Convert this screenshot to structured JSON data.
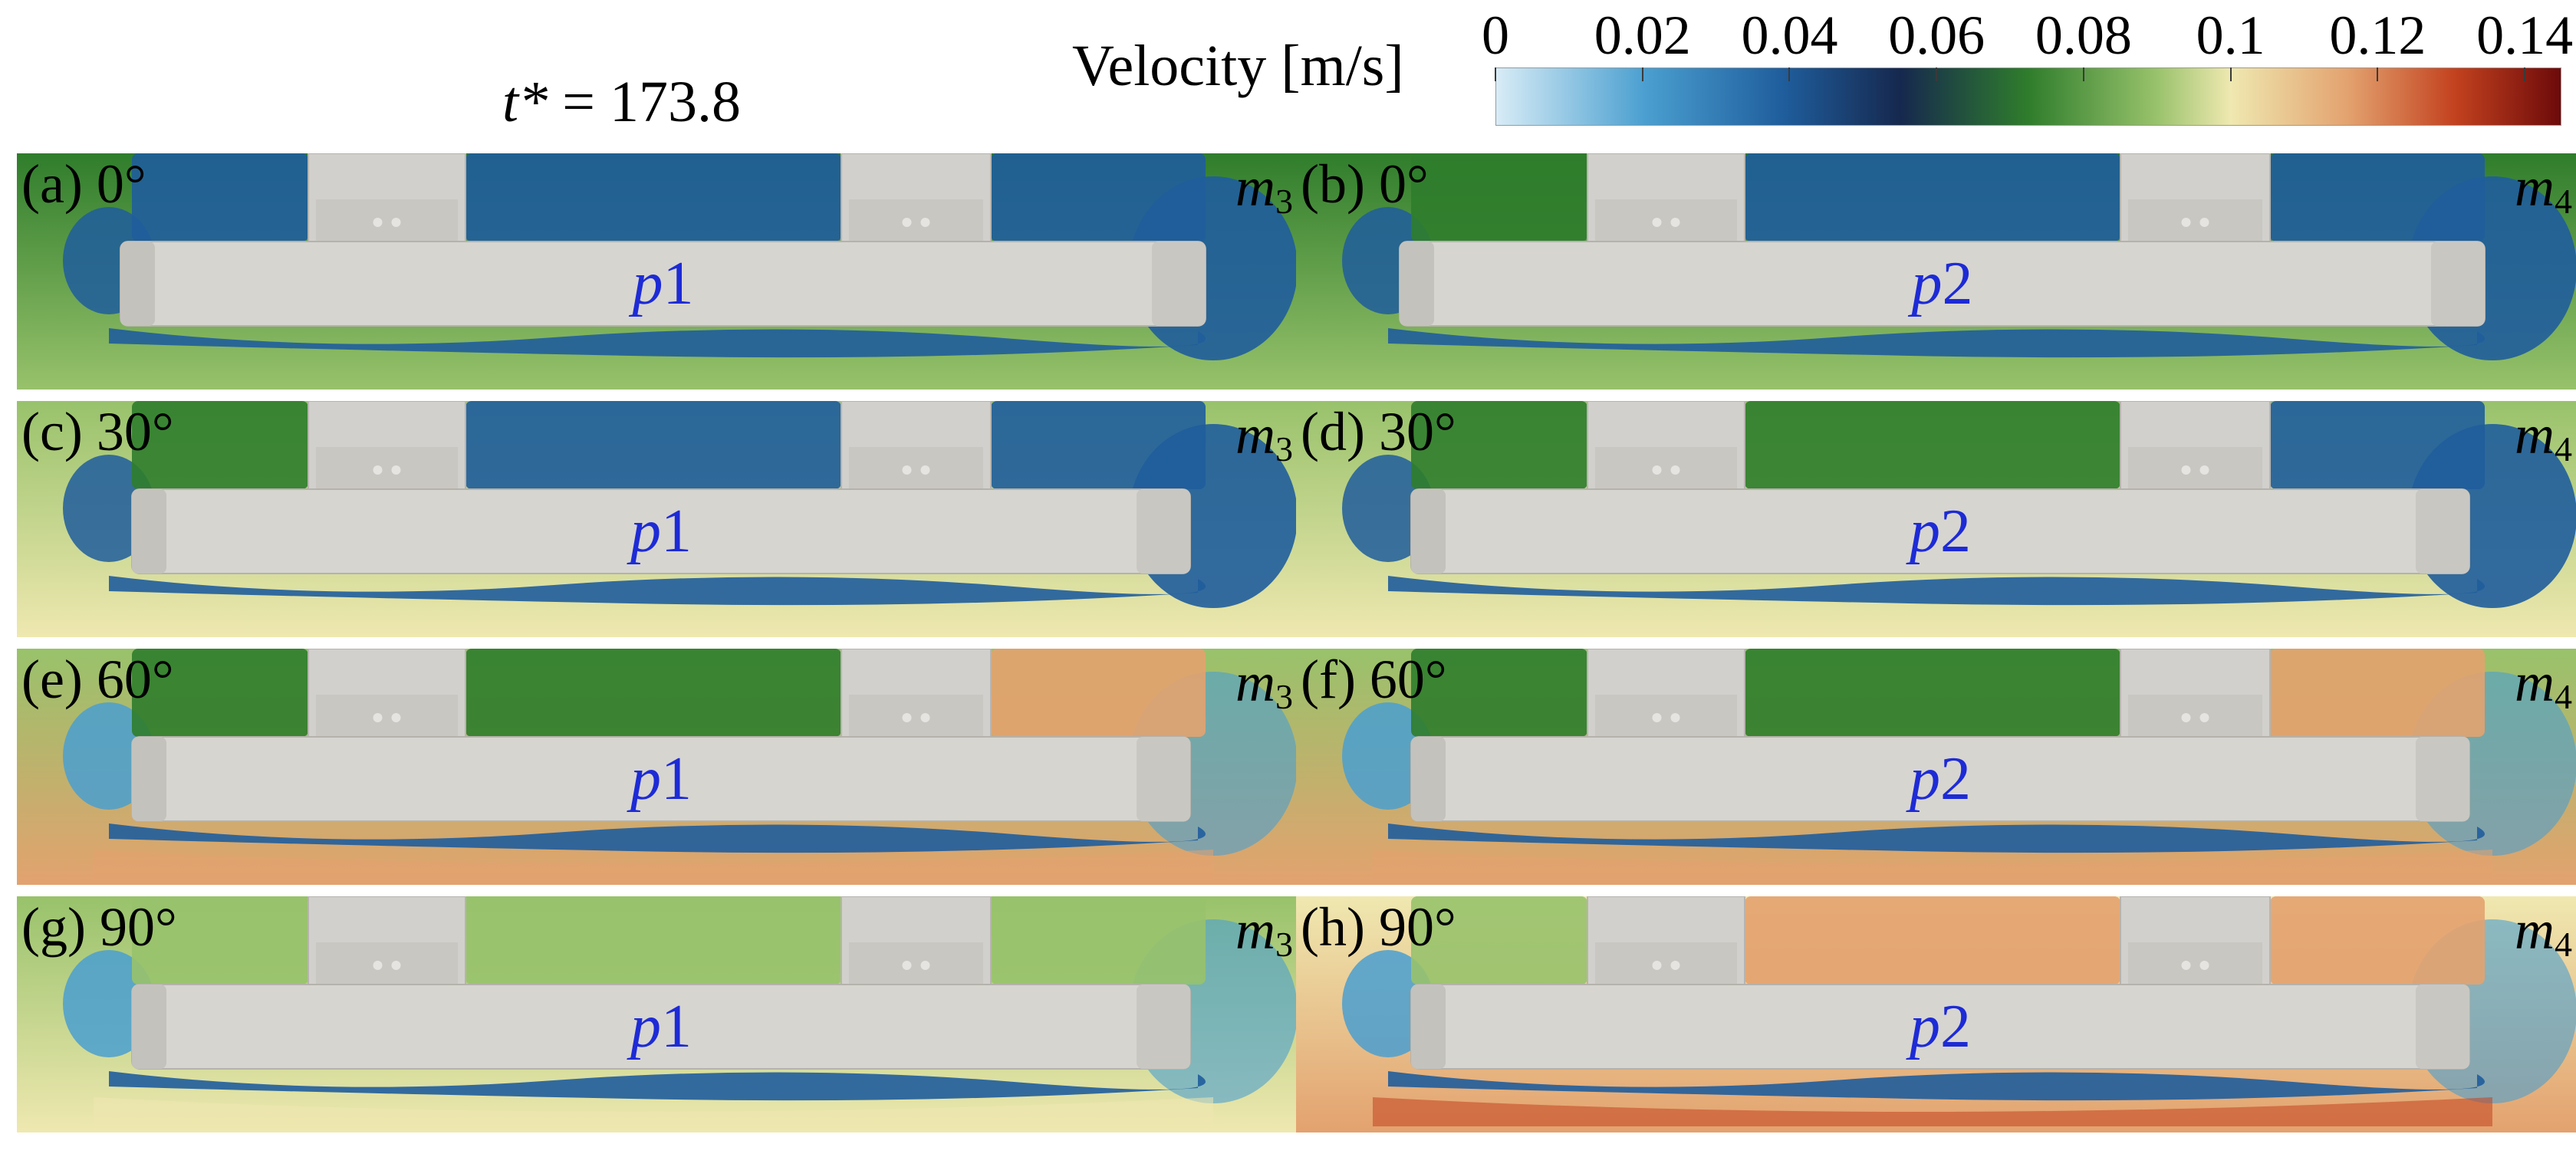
{
  "figure": {
    "time_label_symbol": "t*",
    "time_label_eq": "=",
    "time_value": "173.8"
  },
  "colorbar": {
    "title": "Velocity [m/s]",
    "unit": "m/s",
    "range": [
      0,
      0.145
    ],
    "ticks": [
      "0",
      "0.02",
      "0.04",
      "0.06",
      "0.08",
      "0.1",
      "0.12",
      "0.14"
    ],
    "tick_values": [
      0,
      0.02,
      0.04,
      0.06,
      0.08,
      0.1,
      0.12,
      0.14
    ],
    "colors": {
      "low": "#d8ecf6",
      "light_blue": "#4a9fd0",
      "blue": "#1f5d9c",
      "dark": "#16284e",
      "green": "#2f7d2c",
      "light_green": "#98c26b",
      "yellow": "#efe8b0",
      "tan": "#e3a26f",
      "red": "#c3421f",
      "high": "#6d0a0a"
    }
  },
  "panels": [
    {
      "id": "a",
      "label": "(a) 0°",
      "model": "m",
      "model_sub": "3",
      "body_letter": "p",
      "body_num": "1"
    },
    {
      "id": "b",
      "label": "(b) 0°",
      "model": "m",
      "model_sub": "4",
      "body_letter": "p",
      "body_num": "2"
    },
    {
      "id": "c",
      "label": "(c) 30°",
      "model": "m",
      "model_sub": "3",
      "body_letter": "p",
      "body_num": "1"
    },
    {
      "id": "d",
      "label": "(d) 30°",
      "model": "m",
      "model_sub": "4",
      "body_letter": "p",
      "body_num": "2"
    },
    {
      "id": "e",
      "label": "(e) 60°",
      "model": "m",
      "model_sub": "3",
      "body_letter": "p",
      "body_num": "1"
    },
    {
      "id": "f",
      "label": "(f) 60°",
      "model": "m",
      "model_sub": "4",
      "body_letter": "p",
      "body_num": "2"
    },
    {
      "id": "g",
      "label": "(g) 90°",
      "model": "m",
      "model_sub": "3",
      "body_letter": "p",
      "body_num": "1"
    },
    {
      "id": "h",
      "label": "(h) 90°",
      "model": "m",
      "model_sub": "4",
      "body_letter": "p",
      "body_num": "2"
    }
  ]
}
